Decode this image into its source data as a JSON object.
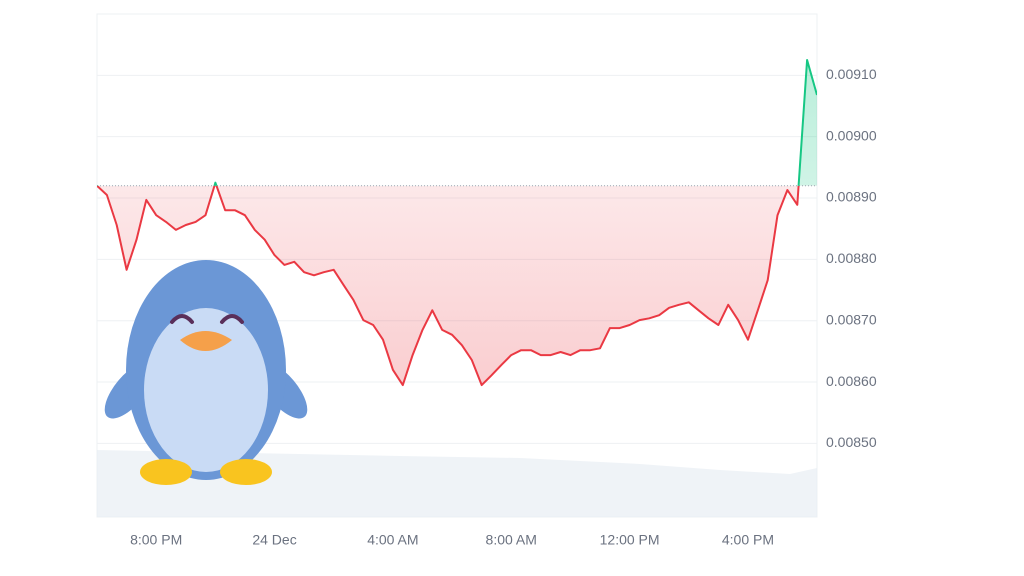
{
  "chart_data": {
    "type": "line",
    "baseline": 0.00892,
    "xlim": [
      0,
      73
    ],
    "xticks": [
      {
        "value": 6,
        "label": "8:00 PM"
      },
      {
        "value": 18,
        "label": "24 Dec"
      },
      {
        "value": 30,
        "label": "4:00 AM"
      },
      {
        "value": 42,
        "label": "8:00 AM"
      },
      {
        "value": 54,
        "label": "12:00 PM"
      },
      {
        "value": 66,
        "label": "4:00 PM"
      }
    ],
    "ylim": [
      0.00838,
      0.0092
    ],
    "yticks": [
      {
        "value": 0.0085,
        "label": "0.00850"
      },
      {
        "value": 0.0086,
        "label": "0.00860"
      },
      {
        "value": 0.0087,
        "label": "0.00870"
      },
      {
        "value": 0.0088,
        "label": "0.00880"
      },
      {
        "value": 0.0089,
        "label": "0.00890"
      },
      {
        "value": 0.009,
        "label": "0.00900"
      },
      {
        "value": 0.0091,
        "label": "0.00910"
      }
    ],
    "grid": true,
    "up_color": "#16c784",
    "down_color": "#ea3943",
    "values": [
      0.00892,
      0.008905,
      0.008856,
      0.008783,
      0.008832,
      0.008897,
      0.008872,
      0.008861,
      0.008848,
      0.008856,
      0.008861,
      0.008872,
      0.008925,
      0.00888,
      0.00888,
      0.008872,
      0.008848,
      0.008832,
      0.008807,
      0.008791,
      0.008796,
      0.008779,
      0.008774,
      0.008779,
      0.008783,
      0.008758,
      0.008734,
      0.008701,
      0.008693,
      0.008669,
      0.00862,
      0.008595,
      0.008644,
      0.008685,
      0.008717,
      0.008685,
      0.008677,
      0.00866,
      0.008636,
      0.008595,
      0.008611,
      0.008628,
      0.008644,
      0.008652,
      0.008652,
      0.008644,
      0.008644,
      0.008649,
      0.008644,
      0.008652,
      0.008652,
      0.008655,
      0.008688,
      0.008688,
      0.008693,
      0.008701,
      0.008704,
      0.008709,
      0.008721,
      0.008726,
      0.00873,
      0.008717,
      0.008704,
      0.008693,
      0.008726,
      0.008701,
      0.008669,
      0.008717,
      0.008766,
      0.008872,
      0.008913,
      0.008889,
      0.009125,
      0.009068
    ]
  }
}
